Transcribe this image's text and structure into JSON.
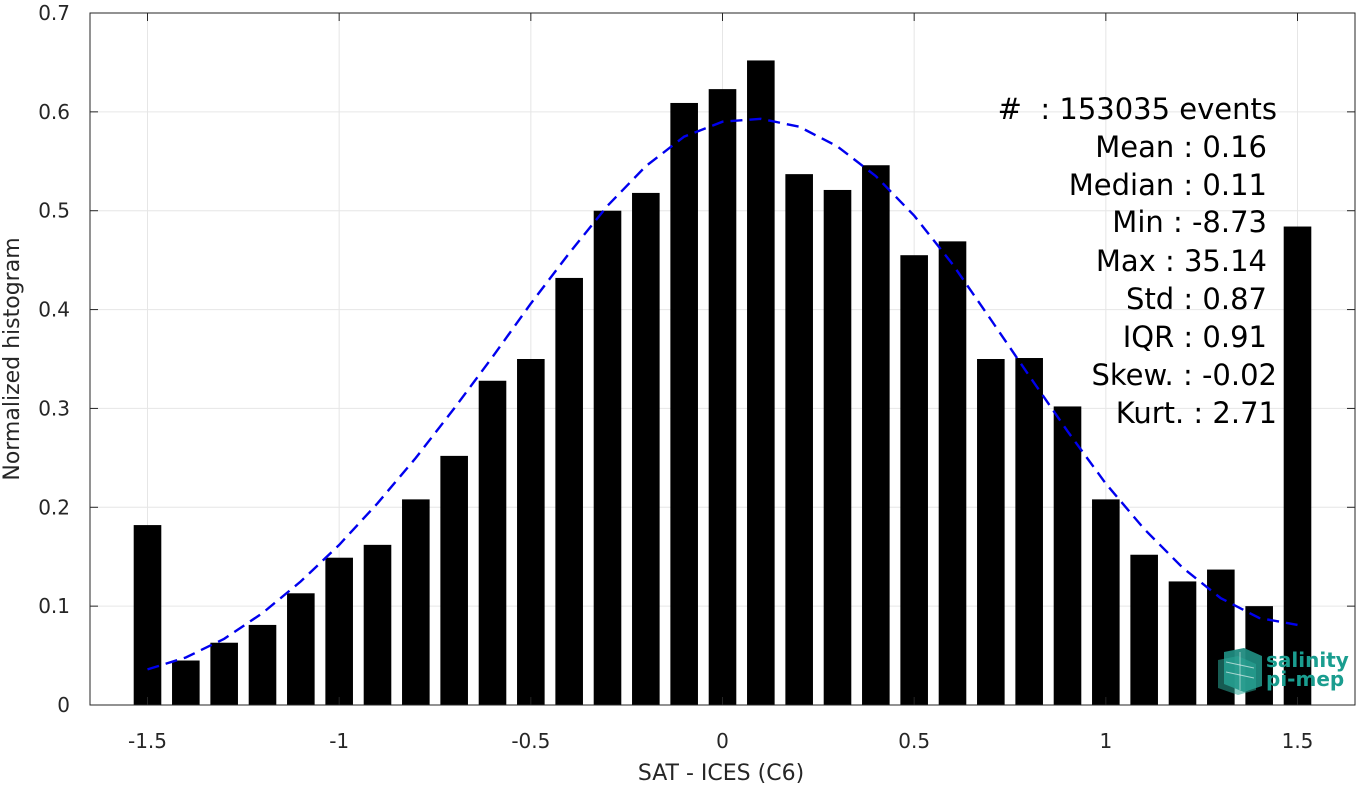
{
  "chart_data": {
    "type": "bar",
    "xlabel": "SAT - ICES (C6)",
    "ylabel": "Normalized histogram",
    "xlim": [
      -1.65,
      1.65
    ],
    "ylim": [
      0,
      0.7
    ],
    "grid": true,
    "xticks": [
      -1.5,
      -1,
      -0.5,
      0,
      0.5,
      1,
      1.5
    ],
    "xtick_labels": [
      "-1.5",
      "-1",
      "-0.5",
      "0",
      "0.5",
      "1",
      "1.5"
    ],
    "yticks": [
      0,
      0.1,
      0.2,
      0.3,
      0.4,
      0.5,
      0.6,
      0.7
    ],
    "ytick_labels": [
      "0",
      "0.1",
      "0.2",
      "0.3",
      "0.4",
      "0.5",
      "0.6",
      "0.7"
    ],
    "bin_width": 0.1,
    "bar_color": "#000000",
    "x": [
      -1.5,
      -1.4,
      -1.3,
      -1.2,
      -1.1,
      -1.0,
      -0.9,
      -0.8,
      -0.7,
      -0.6,
      -0.5,
      -0.4,
      -0.3,
      -0.2,
      -0.1,
      0.0,
      0.1,
      0.2,
      0.3,
      0.4,
      0.5,
      0.6,
      0.7,
      0.8,
      0.9,
      1.0,
      1.1,
      1.2,
      1.3,
      1.4,
      1.5
    ],
    "values": [
      0.182,
      0.045,
      0.063,
      0.081,
      0.113,
      0.149,
      0.162,
      0.208,
      0.252,
      0.328,
      0.35,
      0.432,
      0.5,
      0.518,
      0.609,
      0.623,
      0.652,
      0.537,
      0.521,
      0.546,
      0.455,
      0.469,
      0.35,
      0.351,
      0.302,
      0.208,
      0.152,
      0.125,
      0.137,
      0.1,
      0.484
    ],
    "fit": {
      "style": "dashed",
      "color": "#0000ee",
      "x": [
        -1.5,
        -1.4,
        -1.3,
        -1.2,
        -1.1,
        -1.0,
        -0.9,
        -0.8,
        -0.7,
        -0.6,
        -0.5,
        -0.4,
        -0.3,
        -0.2,
        -0.1,
        0.0,
        0.1,
        0.2,
        0.3,
        0.4,
        0.5,
        0.6,
        0.7,
        0.8,
        0.9,
        1.0,
        1.1,
        1.2,
        1.3,
        1.4,
        1.5
      ],
      "y": [
        0.036,
        0.048,
        0.067,
        0.093,
        0.125,
        0.162,
        0.204,
        0.25,
        0.3,
        0.352,
        0.406,
        0.457,
        0.505,
        0.545,
        0.575,
        0.59,
        0.593,
        0.585,
        0.565,
        0.535,
        0.495,
        0.446,
        0.39,
        0.333,
        0.277,
        0.224,
        0.178,
        0.139,
        0.108,
        0.088,
        0.081
      ]
    },
    "annotations": [
      "#  : 153035 events",
      "Mean : 0.16",
      "Median : 0.11",
      "Min : -8.73",
      "Max : 35.14",
      "Std : 0.87",
      "IQR : 0.91",
      "Skew. : -0.02",
      "Kurt. : 2.71"
    ]
  },
  "logo": {
    "line1": "salinity",
    "line2": "pi-mep",
    "color": "#1a9d8f"
  }
}
